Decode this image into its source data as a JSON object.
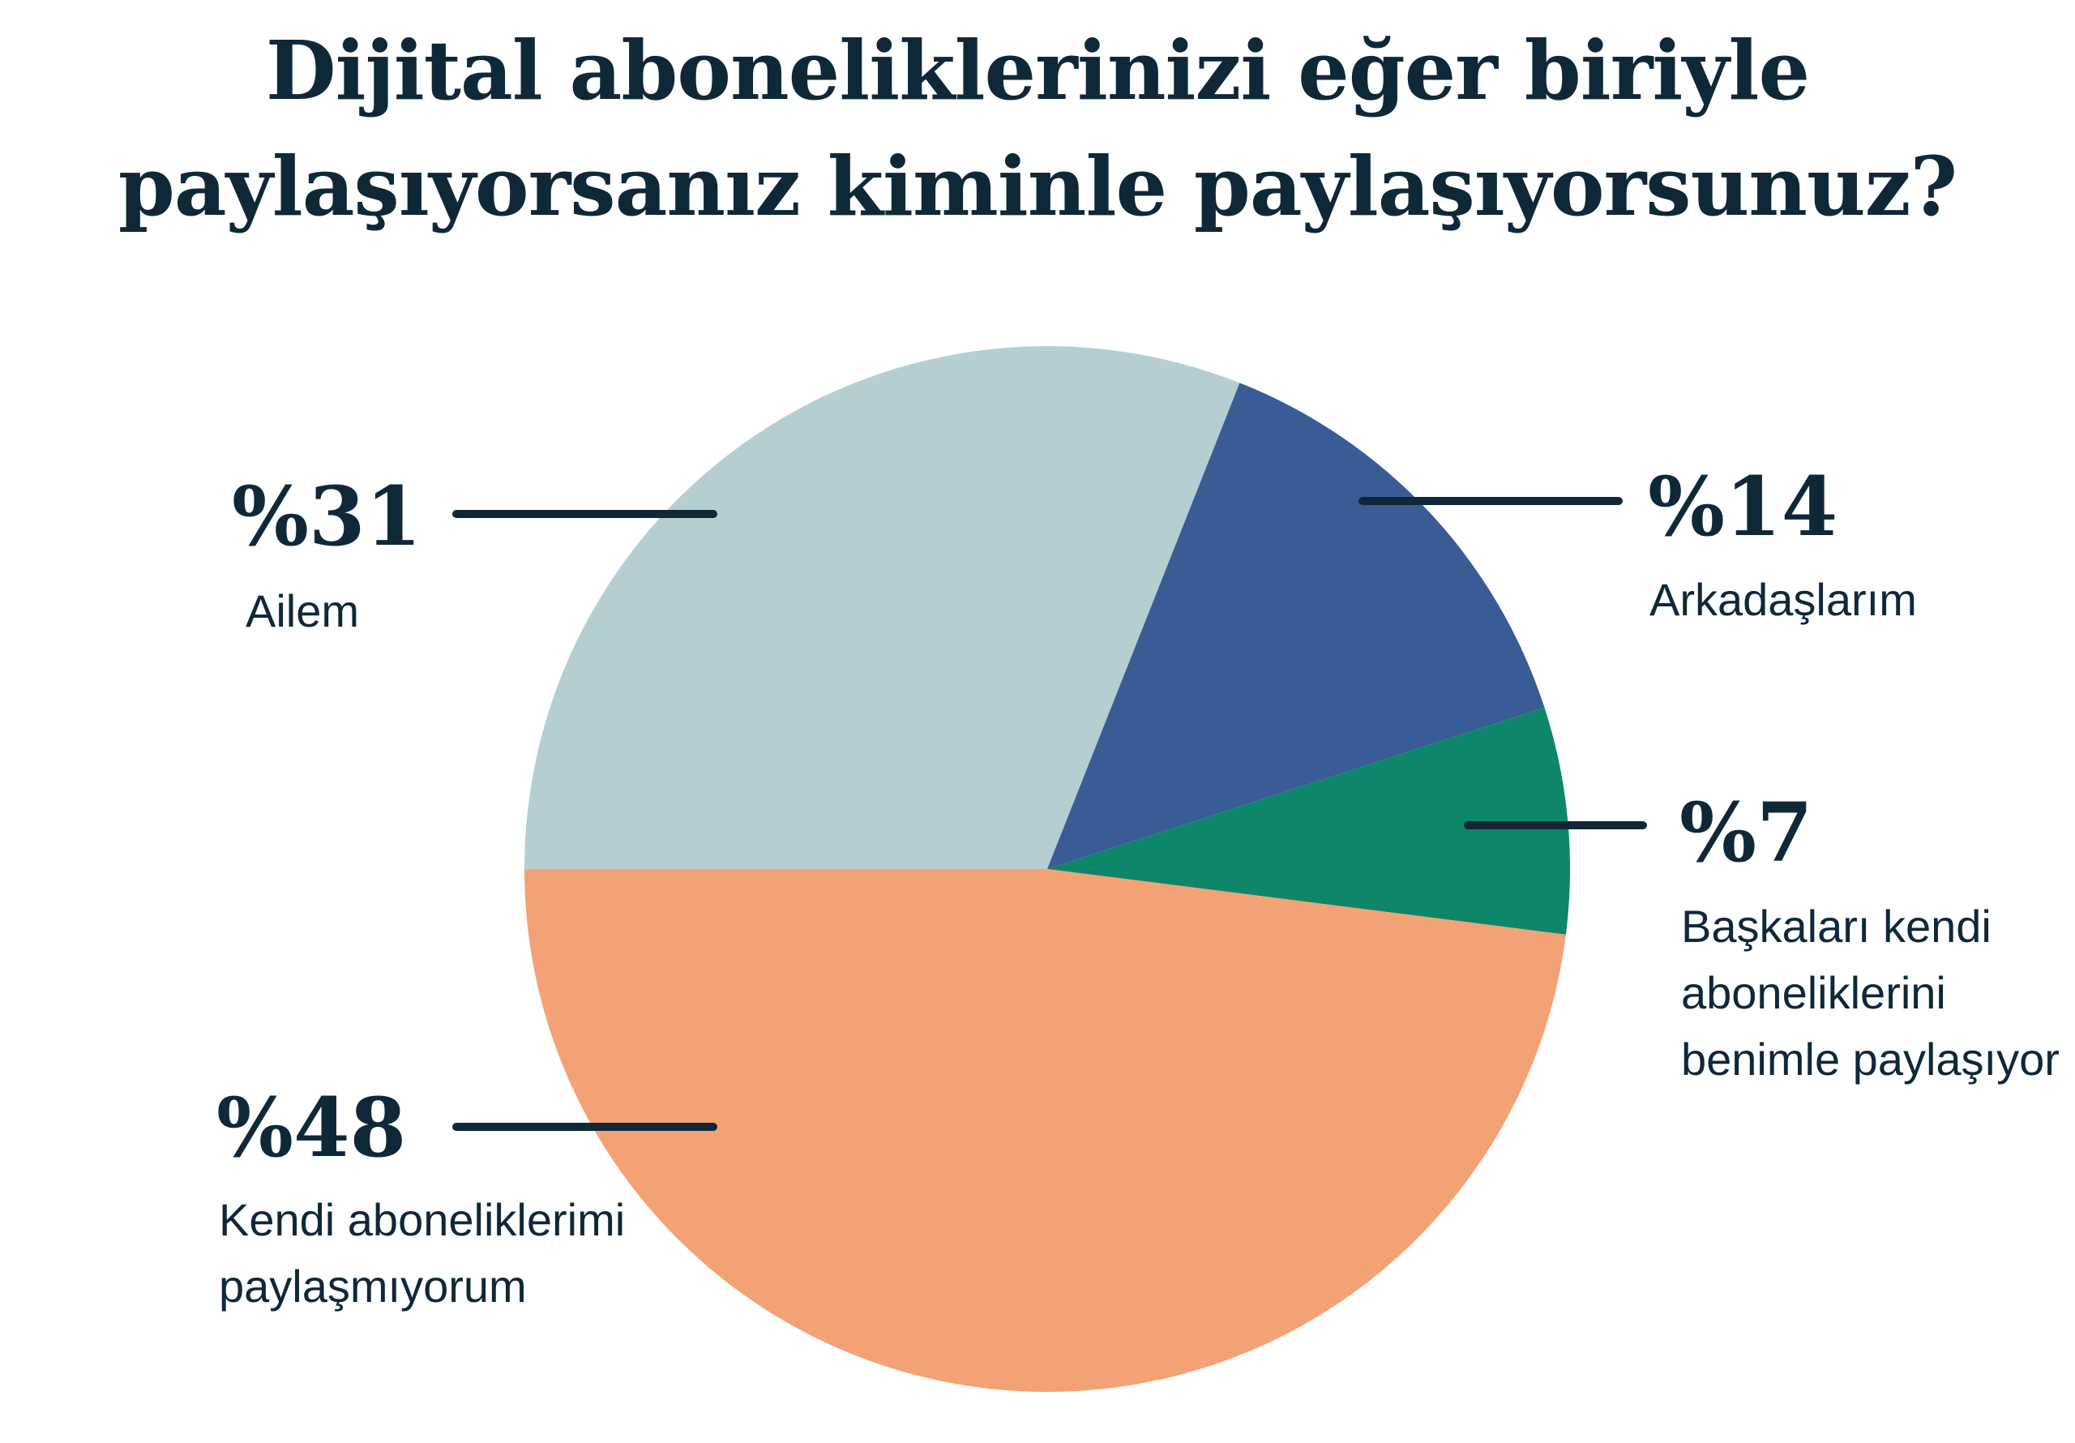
{
  "title": {
    "line1": "Dijital aboneliklerinizi eğer biriyle",
    "line2": "paylaşıyorsanız kiminle paylaşıyorsunuz?"
  },
  "colors": {
    "bg": "#ffffff",
    "text_navy": "#0f2838",
    "slice_teal": "#b5cfd1",
    "slice_blue": "#395b96",
    "slice_green": "#0e8669",
    "slice_orange": "#f3a276"
  },
  "chart_data": {
    "type": "pie",
    "title": "Dijital aboneliklerinizi eğer biriyle paylaşıyorsanız kiminle paylaşıyorsunuz?",
    "start_angle_deg": 180,
    "direction": "clockwise",
    "legend_position": "callout-labels",
    "categories": [
      "Ailem",
      "Arkadaşlarım",
      "Başkaları kendi aboneliklerini benimle paylaşıyor",
      "Kendi aboneliklerimi paylaşmıyorum"
    ],
    "values": [
      31,
      14,
      7,
      48
    ],
    "slices": [
      {
        "id": "ailem",
        "label": "Ailem",
        "value": 31,
        "pct_label": "%31",
        "color": "#b5cfd1"
      },
      {
        "id": "arkadaslarim",
        "label": "Arkadaşlarım",
        "value": 14,
        "pct_label": "%14",
        "color": "#395b96"
      },
      {
        "id": "baskalari",
        "label": "Başkaları kendi aboneliklerini benimle paylaşıyor",
        "value": 7,
        "pct_label": "%7",
        "color": "#0e8669"
      },
      {
        "id": "kendi",
        "label": "Kendi aboneliklerimi paylaşmıyorum",
        "value": 48,
        "pct_label": "%48",
        "color": "#f3a276"
      }
    ]
  },
  "labels": {
    "ailem": {
      "pct": "%31",
      "lines": [
        "Ailem"
      ]
    },
    "arkadaslarim": {
      "pct": "%14",
      "lines": [
        "Arkadaşlarım"
      ]
    },
    "baskalari": {
      "pct": "%7",
      "lines": [
        "Başkaları kendi",
        "aboneliklerini",
        "benimle paylaşıyor"
      ]
    },
    "kendi": {
      "pct": "%48",
      "lines": [
        "Kendi aboneliklerimi",
        "paylaşmıyorum"
      ]
    }
  }
}
